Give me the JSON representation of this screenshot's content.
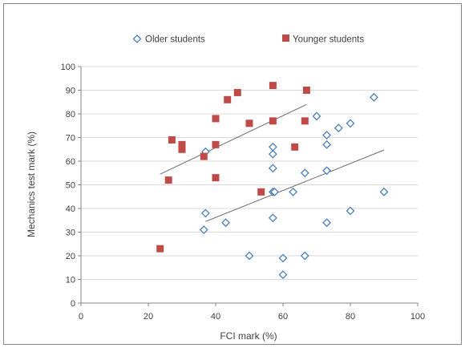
{
  "chart_data": {
    "type": "scatter",
    "title": "",
    "xlabel": "FCI mark (%)",
    "ylabel": "Mechanics test mark (%)",
    "xlim": [
      0,
      100
    ],
    "ylim": [
      0,
      100
    ],
    "x_ticks": [
      0,
      20,
      40,
      60,
      80,
      100
    ],
    "y_ticks": [
      0,
      10,
      20,
      30,
      40,
      50,
      60,
      70,
      80,
      90,
      100
    ],
    "grid": "horizontal major gridlines",
    "legend_position": "top",
    "series": [
      {
        "name": "Older students",
        "marker": "hollow diamond",
        "color": "#4a7ebb",
        "points": [
          [
            37,
            64
          ],
          [
            37,
            38
          ],
          [
            36.5,
            31
          ],
          [
            43,
            34
          ],
          [
            50,
            20
          ],
          [
            57,
            66
          ],
          [
            57,
            63
          ],
          [
            57,
            57
          ],
          [
            57,
            47
          ],
          [
            57.5,
            47
          ],
          [
            57,
            36
          ],
          [
            60,
            19
          ],
          [
            60,
            12
          ],
          [
            63,
            47
          ],
          [
            66.5,
            55
          ],
          [
            66.5,
            20
          ],
          [
            70,
            79
          ],
          [
            73,
            71
          ],
          [
            73,
            67
          ],
          [
            73,
            56
          ],
          [
            73,
            34
          ],
          [
            76.5,
            74
          ],
          [
            80,
            76
          ],
          [
            80,
            39
          ],
          [
            87,
            87
          ],
          [
            90,
            47
          ]
        ],
        "trendline": {
          "from": [
            37,
            34.5
          ],
          "to": [
            90,
            64.7
          ]
        }
      },
      {
        "name": "Younger students",
        "marker": "filled square",
        "color": "#be4b48",
        "points": [
          [
            23.5,
            23
          ],
          [
            26,
            52
          ],
          [
            27,
            69
          ],
          [
            30,
            67
          ],
          [
            30,
            65
          ],
          [
            36.5,
            62
          ],
          [
            40,
            78
          ],
          [
            40,
            67
          ],
          [
            40,
            53
          ],
          [
            43.5,
            86
          ],
          [
            46.5,
            89
          ],
          [
            50,
            76
          ],
          [
            53.5,
            47
          ],
          [
            57,
            92
          ],
          [
            57,
            77
          ],
          [
            63.5,
            66
          ],
          [
            66.5,
            77
          ],
          [
            67,
            90
          ]
        ],
        "trendline": {
          "from": [
            23.5,
            54.5
          ],
          "to": [
            67,
            84
          ]
        }
      }
    ]
  }
}
